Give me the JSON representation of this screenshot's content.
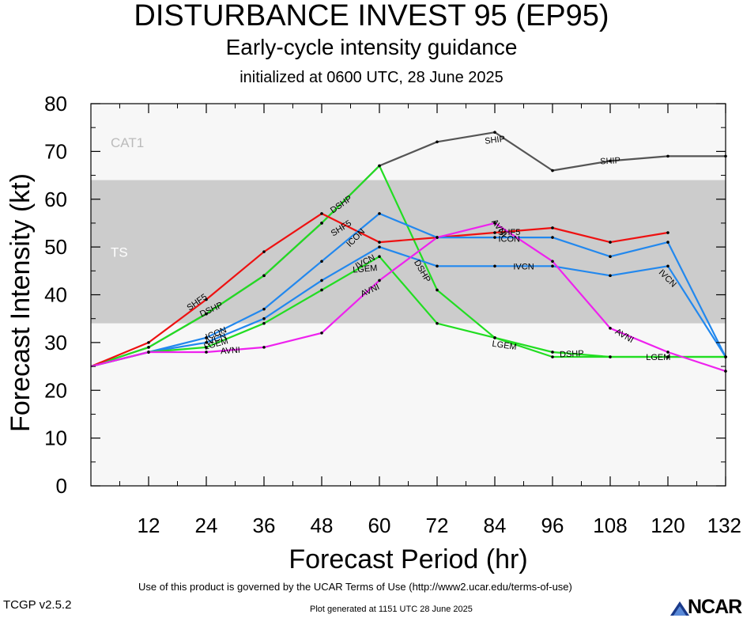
{
  "header": {
    "title": "DISTURBANCE INVEST 95 (EP95)",
    "subtitle": "Early-cycle intensity guidance",
    "init_line": "initialized at 0600 UTC, 28 June 2025"
  },
  "footer": {
    "terms": "Use of this product is governed by the UCAR Terms of Use (http://www2.ucar.edu/terms-of-use)",
    "version": "TCGP v2.5.2",
    "generated": "Plot generated at 1151 UTC   28 June 2025",
    "logo_text": "NCAR"
  },
  "chart_data": {
    "type": "line",
    "xlabel": "Forecast Period (hr)",
    "ylabel": "Forecast Intensity (kt)",
    "xlim": [
      0,
      132
    ],
    "ylim": [
      0,
      80
    ],
    "xticks": [
      12,
      24,
      36,
      48,
      60,
      72,
      84,
      96,
      108,
      120,
      132
    ],
    "yticks": [
      0,
      10,
      20,
      30,
      40,
      50,
      60,
      70,
      80
    ],
    "grid": false,
    "bands": [
      {
        "label": "CAT1",
        "from": 64,
        "to": 80,
        "color": "#f7f7f7"
      },
      {
        "label": "TS",
        "from": 34,
        "to": 64,
        "color": "#cccccc"
      },
      {
        "label": "",
        "from": 0,
        "to": 34,
        "color": "#f7f7f7"
      }
    ],
    "series": [
      {
        "name": "SHIP",
        "color": "#555555",
        "x": [
          0,
          12,
          24,
          36,
          48,
          60,
          72,
          84,
          96,
          108,
          120,
          132
        ],
        "y": [
          25,
          29,
          36,
          44,
          55,
          67,
          72,
          74,
          66,
          68,
          69,
          69
        ],
        "labels": [
          {
            "x": 84,
            "y": 72.5,
            "rot": -7
          },
          {
            "x": 108,
            "y": 68.1,
            "rot": -3
          }
        ]
      },
      {
        "name": "DSHP",
        "color": "#22dd22",
        "x": [
          0,
          12,
          24,
          36,
          48,
          60,
          72,
          84,
          96,
          108,
          120,
          132
        ],
        "y": [
          25,
          29,
          36,
          44,
          55,
          67,
          41,
          31,
          28,
          27,
          27,
          27
        ],
        "labels": [
          {
            "x": 52,
            "y": 59,
            "rot": -35
          },
          {
            "x": 25,
            "y": 37,
            "rot": -25
          },
          {
            "x": 69,
            "y": 45,
            "rot": 60
          },
          {
            "x": 100,
            "y": 27.7,
            "rot": -3
          }
        ]
      },
      {
        "name": "SHF5",
        "color": "#ee1111",
        "x": [
          0,
          12,
          24,
          36,
          48,
          60,
          72,
          84,
          96,
          108,
          120
        ],
        "y": [
          25,
          30,
          39,
          49,
          57,
          51,
          52,
          53,
          54,
          51,
          53
        ],
        "labels": [
          {
            "x": 22,
            "y": 38.5,
            "rot": -35
          },
          {
            "x": 52,
            "y": 54,
            "rot": -32
          },
          {
            "x": 87,
            "y": 53.2,
            "rot": 0
          }
        ]
      },
      {
        "name": "ICON",
        "color": "#2288ee",
        "x": [
          0,
          12,
          24,
          36,
          48,
          60,
          72,
          84,
          96,
          108,
          120,
          132
        ],
        "y": [
          25,
          28,
          31,
          37,
          47,
          57,
          52,
          52,
          52,
          48,
          51,
          27
        ],
        "labels": [
          {
            "x": 26,
            "y": 32,
            "rot": -22
          },
          {
            "x": 55,
            "y": 52,
            "rot": -45
          },
          {
            "x": 87,
            "y": 51.8,
            "rot": 0
          }
        ]
      },
      {
        "name": "IVCN",
        "color": "#2288ee",
        "x": [
          0,
          12,
          24,
          36,
          48,
          60,
          72,
          84,
          96,
          108,
          120,
          132
        ],
        "y": [
          25,
          28,
          30,
          35,
          43,
          50,
          46,
          46,
          46,
          44,
          46,
          27
        ],
        "labels": [
          {
            "x": 26,
            "y": 30.8,
            "rot": -22
          },
          {
            "x": 57,
            "y": 47,
            "rot": -28
          },
          {
            "x": 90,
            "y": 46,
            "rot": 0
          },
          {
            "x": 120,
            "y": 43.5,
            "rot": 45
          }
        ]
      },
      {
        "name": "LGEM",
        "color": "#22dd22",
        "x": [
          0,
          12,
          24,
          36,
          48,
          60,
          72,
          84,
          96,
          108,
          120,
          132
        ],
        "y": [
          25,
          28,
          29,
          34,
          41,
          48,
          34,
          31,
          27,
          27,
          27,
          27
        ],
        "labels": [
          {
            "x": 26,
            "y": 29.8,
            "rot": -15
          },
          {
            "x": 57,
            "y": 45.5,
            "rot": -5
          },
          {
            "x": 86,
            "y": 29.5,
            "rot": 8
          },
          {
            "x": 118,
            "y": 27,
            "rot": 0
          }
        ]
      },
      {
        "name": "AVNI",
        "color": "#ee22ee",
        "x": [
          0,
          12,
          24,
          36,
          48,
          60,
          72,
          84,
          96,
          108,
          120,
          132
        ],
        "y": [
          25,
          28,
          28,
          29,
          32,
          43,
          52,
          55,
          47,
          33,
          28,
          24
        ],
        "labels": [
          {
            "x": 29,
            "y": 28.4,
            "rot": -4
          },
          {
            "x": 58,
            "y": 41,
            "rot": -25
          },
          {
            "x": 85,
            "y": 54,
            "rot": 55
          },
          {
            "x": 111,
            "y": 31.5,
            "rot": 30
          }
        ]
      }
    ]
  }
}
